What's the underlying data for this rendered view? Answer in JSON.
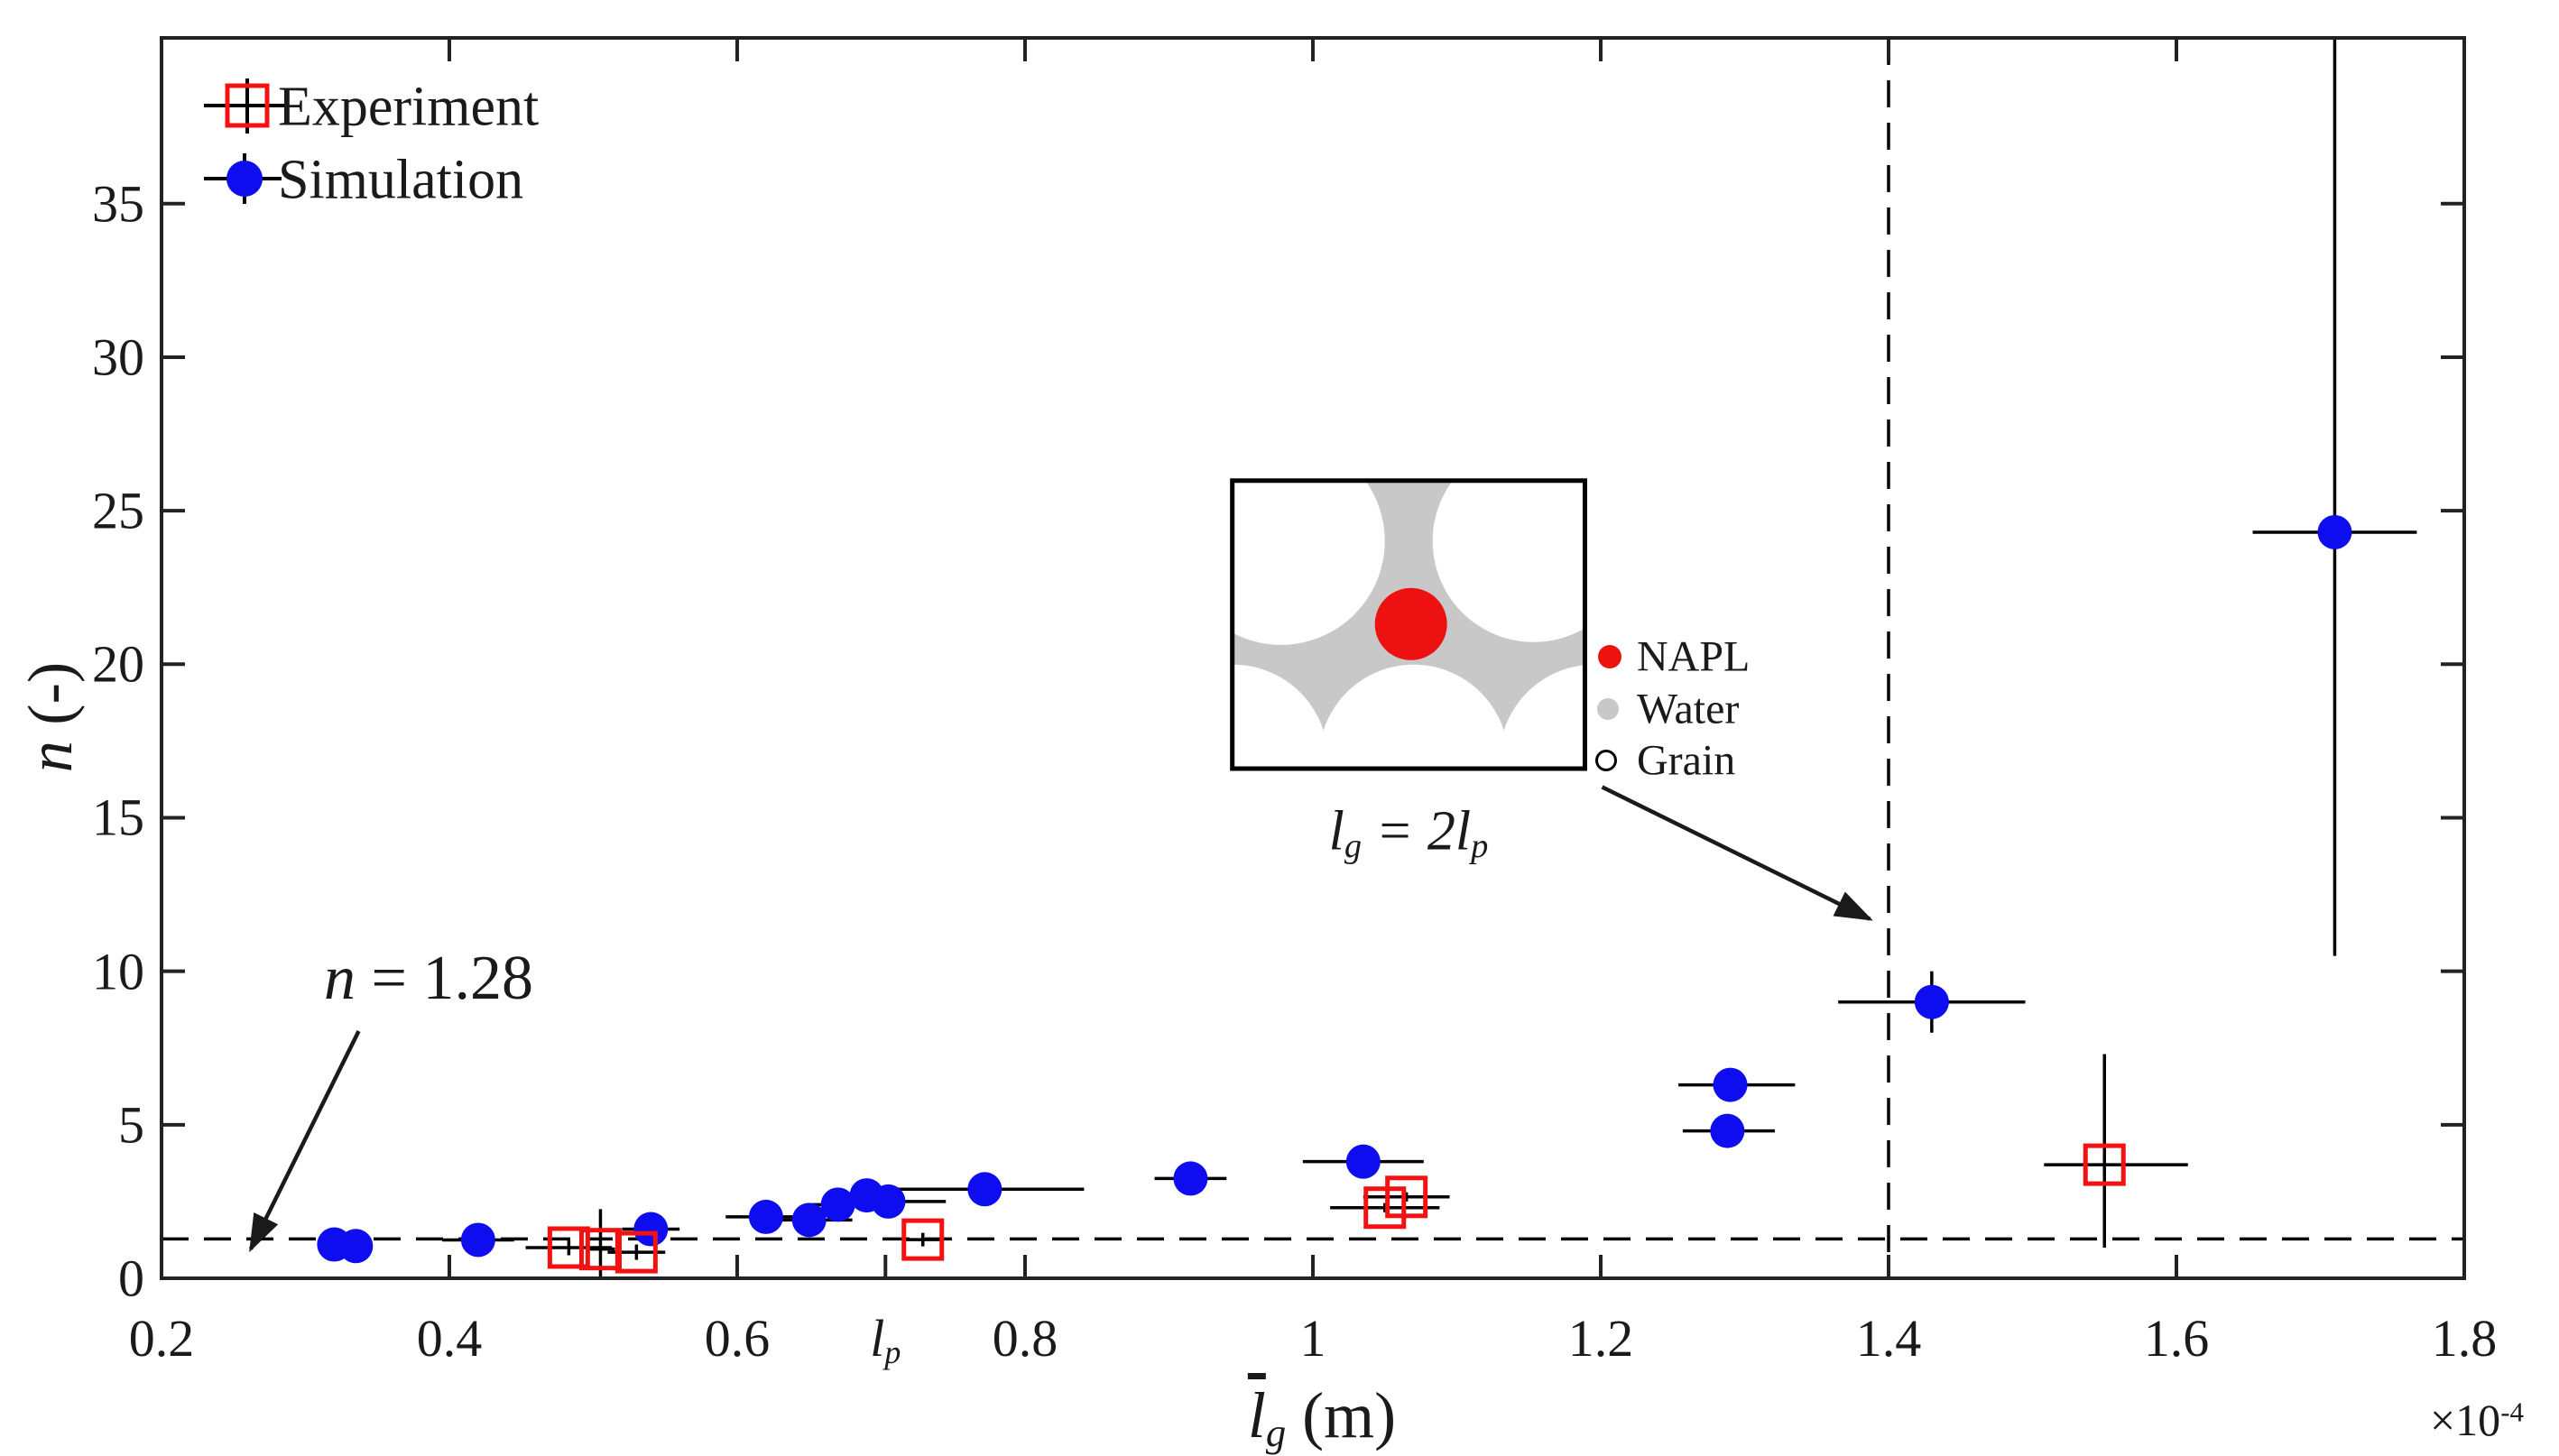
{
  "figure": {
    "background": "#ffffff",
    "text_color": "#1a1a1a"
  },
  "chart_data": {
    "type": "scatter",
    "title": "",
    "xlabel_main": "l",
    "xlabel_sub": "g",
    "xlabel_unit": " (m)",
    "x_multiplier": "×10",
    "x_multiplier_exp": "-4",
    "ylabel_var": "n",
    "ylabel_unit": " (-)",
    "xlim": [
      0.2,
      1.8
    ],
    "ylim": [
      0,
      40.4
    ],
    "grid": false,
    "xticks": [
      {
        "v": 0.2,
        "label": "0.2"
      },
      {
        "v": 0.4,
        "label": "0.4"
      },
      {
        "v": 0.6,
        "label": "0.6"
      },
      {
        "v": 0.8,
        "label": "0.8"
      },
      {
        "v": 1.0,
        "label": "1"
      },
      {
        "v": 1.2,
        "label": "1.2"
      },
      {
        "v": 1.4,
        "label": "1.4"
      },
      {
        "v": 1.6,
        "label": "1.6"
      },
      {
        "v": 1.8,
        "label": "1.8"
      }
    ],
    "lp_tick": {
      "v": 0.703,
      "label_main": "l",
      "label_sub": "p"
    },
    "yticks": [
      {
        "v": 0,
        "label": "0"
      },
      {
        "v": 5,
        "label": "5"
      },
      {
        "v": 10,
        "label": "10"
      },
      {
        "v": 15,
        "label": "15"
      },
      {
        "v": 20,
        "label": "20"
      },
      {
        "v": 25,
        "label": "25"
      },
      {
        "v": 30,
        "label": "30"
      },
      {
        "v": 35,
        "label": "35"
      }
    ],
    "hline": {
      "n": 1.28,
      "style": "dashed"
    },
    "vline": {
      "x": 1.4,
      "style": "dashed"
    },
    "series": [
      {
        "name": "Experiment",
        "marker": "open-square",
        "color": "#f31111",
        "points": [
          {
            "x": 0.483,
            "y": 1.0,
            "xe": 0.03,
            "ye": 0.25
          },
          {
            "x": 0.505,
            "y": 0.95,
            "xe": 0.01,
            "yem": 0.95,
            "yep": 1.3
          },
          {
            "x": 0.53,
            "y": 0.85,
            "xe": 0.02,
            "ye": 0.25
          },
          {
            "x": 0.729,
            "y": 1.26,
            "xe": 0.012,
            "ye": 0.22
          },
          {
            "x": 1.05,
            "y": 2.3,
            "xe": 0.038,
            "ye": 0.15
          },
          {
            "x": 1.065,
            "y": 2.65,
            "xe": 0.03,
            "ye": 0.15
          },
          {
            "x": 1.55,
            "y": 3.7,
            "xem": 0.042,
            "xep": 0.058,
            "yem": 2.7,
            "yep": 3.6
          }
        ]
      },
      {
        "name": "Simulation",
        "marker": "filled-circle",
        "color": "#0d0df0",
        "points": [
          {
            "x": 0.32,
            "y": 1.1,
            "xe": 0.01
          },
          {
            "x": 0.335,
            "y": 1.05,
            "xe": 0.01
          },
          {
            "x": 0.42,
            "y": 1.25,
            "xe": 0.025
          },
          {
            "x": 0.54,
            "y": 1.6,
            "xe": 0.02
          },
          {
            "x": 0.62,
            "y": 2.0,
            "xe": 0.028
          },
          {
            "x": 0.65,
            "y": 1.9,
            "xe": 0.03
          },
          {
            "x": 0.67,
            "y": 2.4,
            "xe": 0.018,
            "ye": 0.3
          },
          {
            "x": 0.69,
            "y": 2.7,
            "xe": 0.018,
            "ye": 0.3
          },
          {
            "x": 0.705,
            "y": 2.5,
            "xe": 0.04
          },
          {
            "x": 0.772,
            "y": 2.9,
            "xem": 0.066,
            "xep": 0.069
          },
          {
            "x": 0.915,
            "y": 3.25,
            "xe": 0.025
          },
          {
            "x": 1.035,
            "y": 3.8,
            "xe": 0.042
          },
          {
            "x": 1.29,
            "y": 6.3,
            "xem": 0.036,
            "xep": 0.045
          },
          {
            "x": 1.288,
            "y": 4.8,
            "xem": 0.031,
            "xep": 0.033
          },
          {
            "x": 1.43,
            "y": 9.0,
            "xe": 0.065,
            "ye": 1.0
          },
          {
            "x": 1.71,
            "y": 24.3,
            "xe": 0.057,
            "yem": 13.8,
            "yep": 16.1
          }
        ]
      }
    ],
    "legend": {
      "position": "top-left",
      "items": [
        {
          "label": "Experiment"
        },
        {
          "label": "Simulation"
        }
      ]
    },
    "annotation": {
      "var": "n",
      "rest": " = 1.28",
      "text_pos": {
        "x": 0.385,
        "n": 9.75
      },
      "arrow": {
        "x1": 0.337,
        "n1": 8.05,
        "x2": 0.262,
        "n2": 0.95
      }
    },
    "inset": {
      "box": {
        "x0": 0.944,
        "x1": 1.189,
        "n0": 16.6,
        "n1": 25.98
      },
      "water_color": "#c8c8c8",
      "grain_color": "#ffffff",
      "napl_color": "#ee1111",
      "grain_circles_rel": [
        {
          "cx": 54,
          "cy": 67,
          "r": 115
        },
        {
          "cx": 334,
          "cy": 67,
          "r": 112
        },
        {
          "cx": 201,
          "cy": 309,
          "r": 105
        },
        {
          "cx": 1,
          "cy": 309,
          "r": 105
        },
        {
          "cx": 401,
          "cy": 309,
          "r": 105
        }
      ],
      "napl_circle_rel": {
        "cx": 198,
        "cy": 159,
        "r": 40
      },
      "caption_l1": "l",
      "caption_s1": "g",
      "caption_mid": " = 2",
      "caption_l2": "l",
      "caption_s2": "p",
      "legend": [
        {
          "label": "NAPL",
          "type": "filled",
          "color": "#ee1111"
        },
        {
          "label": "Water",
          "type": "filled",
          "color": "#c8c8c8"
        },
        {
          "label": "Grain",
          "type": "open",
          "color": "#ffffff"
        }
      ],
      "arrow": {
        "x1": 1.201,
        "n1": 16.0,
        "x2": 1.387,
        "n2": 11.7
      }
    }
  }
}
